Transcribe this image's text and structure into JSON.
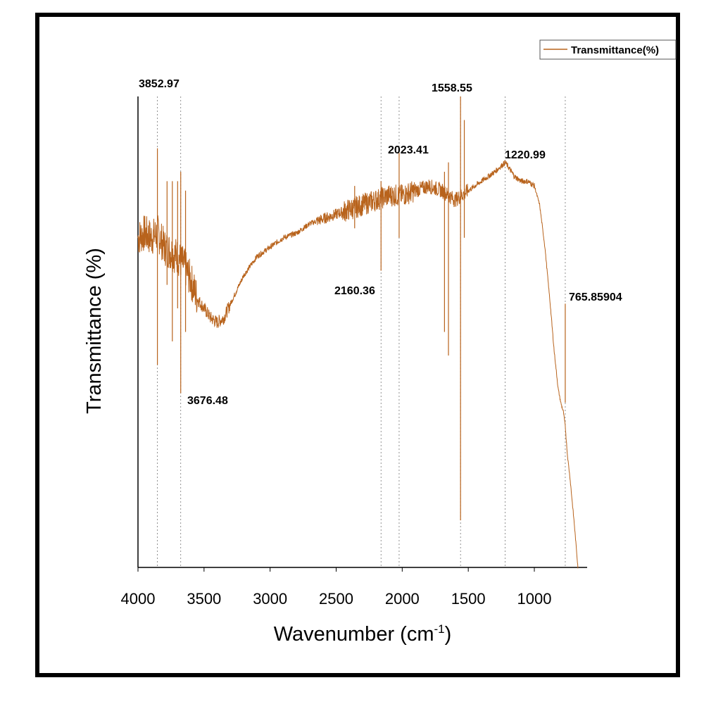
{
  "colors": {
    "series": "#b8631c",
    "axis": "#000000",
    "marker_line": "#777777",
    "frame": "#000000"
  },
  "chart_data": {
    "type": "line",
    "title": "",
    "xlabel_main": "Wavenumber (cm",
    "xlabel_sup": "-1",
    "xlabel_close": ")",
    "ylabel": "Transmittance (%)",
    "xlim": [
      4000,
      650
    ],
    "ylim": [
      0,
      100
    ],
    "x_reversed": true,
    "yticks_shown": false,
    "xticks": [
      4000,
      3500,
      3000,
      2500,
      2000,
      1500,
      1000
    ],
    "xtick_labels": [
      "4000",
      "3500",
      "3000",
      "2500",
      "2000",
      "1500",
      "1000"
    ],
    "legend": {
      "label": "Transmittance(%)",
      "position": "top-right"
    },
    "series": [
      {
        "name": "Transmittance(%)",
        "x": [
          4000,
          3950,
          3900,
          3850,
          3800,
          3750,
          3700,
          3650,
          3600,
          3550,
          3500,
          3450,
          3400,
          3350,
          3300,
          3200,
          3100,
          3000,
          2900,
          2800,
          2700,
          2600,
          2500,
          2400,
          2300,
          2200,
          2100,
          2000,
          1900,
          1800,
          1700,
          1650,
          1600,
          1500,
          1400,
          1300,
          1220,
          1150,
          1100,
          1050,
          1000,
          960,
          920,
          880,
          850,
          820,
          800,
          780,
          766,
          750,
          730,
          700,
          670
        ],
        "y": [
          70,
          71,
          70,
          71,
          68,
          67,
          66,
          64,
          61,
          57,
          55,
          53,
          52,
          53,
          56,
          62,
          66,
          68,
          70,
          71,
          73,
          74,
          75,
          76,
          77,
          78,
          79,
          79,
          80,
          81,
          80,
          79,
          78,
          80,
          82,
          84,
          86,
          83,
          82,
          82,
          81,
          77,
          68,
          56,
          46,
          38,
          35,
          33,
          30,
          24,
          19,
          10,
          0
        ]
      }
    ],
    "spikes": [
      {
        "x": 3852.97,
        "low": 43,
        "high": 89
      },
      {
        "x": 3780,
        "low": 60,
        "high": 82
      },
      {
        "x": 3740,
        "low": 48,
        "high": 82
      },
      {
        "x": 3700,
        "low": 55,
        "high": 82
      },
      {
        "x": 3676.48,
        "low": 37,
        "high": 84
      },
      {
        "x": 3640,
        "low": 50,
        "high": 80
      },
      {
        "x": 2360,
        "low": 72,
        "high": 81
      },
      {
        "x": 2160.36,
        "low": 63,
        "high": 82
      },
      {
        "x": 2023.41,
        "low": 70,
        "high": 88
      },
      {
        "x": 1680,
        "low": 50,
        "high": 84
      },
      {
        "x": 1650,
        "low": 45,
        "high": 86
      },
      {
        "x": 1558.55,
        "low": 10,
        "high": 100
      },
      {
        "x": 1530,
        "low": 70,
        "high": 95
      },
      {
        "x": 766,
        "low": 35,
        "high": 56
      }
    ],
    "annotations": [
      {
        "label": "3852.97",
        "x": 3852.97
      },
      {
        "label": "3676.48",
        "x": 3676.48
      },
      {
        "label": "2160.36",
        "x": 2160.36
      },
      {
        "label": "2023.41",
        "x": 2023.41
      },
      {
        "label": "1558.55",
        "x": 1558.55
      },
      {
        "label": "1220.99",
        "x": 1220.99
      },
      {
        "label": "765.85904",
        "x": 765.85904
      }
    ]
  }
}
